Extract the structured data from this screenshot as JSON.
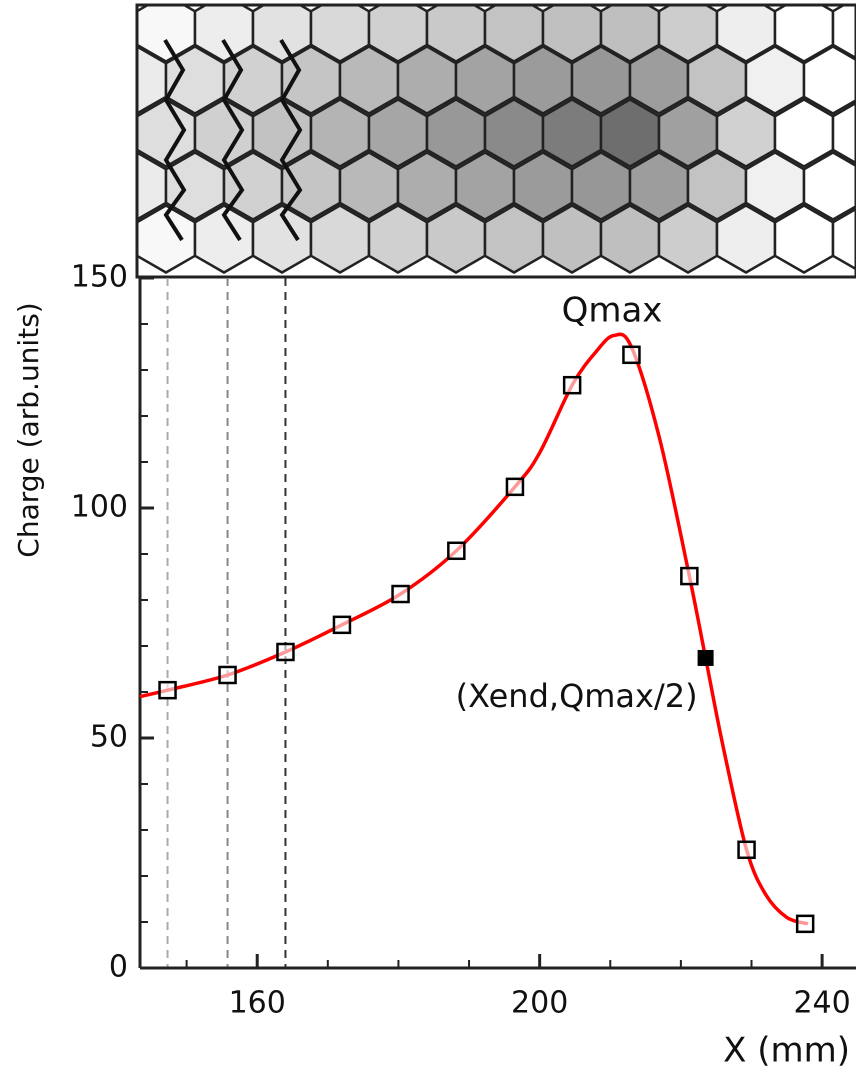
{
  "chart_data": {
    "type": "scatter",
    "ylabel": "Charge (arb.units)",
    "xlabel": "X (mm)",
    "xlim": [
      143.4,
      244.8
    ],
    "ylim": [
      0,
      150
    ],
    "xticks": [
      160,
      200,
      240
    ],
    "yticks": [
      0,
      50,
      100,
      150
    ],
    "xticks_minor": [
      150,
      170,
      180,
      190,
      210,
      220,
      230
    ],
    "yticks_minor": [
      10,
      20,
      30,
      40,
      60,
      70,
      80,
      90,
      110,
      120,
      130,
      140
    ],
    "annotations": [
      {
        "text": "Qmax",
        "x": 210.5,
        "y": 137.5
      }
    ],
    "series": [
      {
        "marker": "square-open",
        "color": "#000000",
        "x": [
          147.3,
          155.8,
          164.0,
          172.0,
          180.3,
          188.2,
          196.5,
          204.6,
          213.0,
          221.2,
          229.3,
          237.6
        ],
        "values": [
          60.4,
          63.7,
          68.7,
          74.6,
          81.3,
          90.7,
          104.6,
          126.7,
          133.3,
          85.2,
          25.7,
          9.6
        ]
      },
      {
        "marker": "square-filled",
        "color": "#000000",
        "label": "(Xend,Qmax/2)",
        "x": [
          223.5
        ],
        "values": [
          67.4
        ]
      },
      {
        "marker": "line",
        "color": "#ff0000",
        "x": [
          143.4,
          147.3,
          155.8,
          164.0,
          172.0,
          180.3,
          188.2,
          196.5,
          200.0,
          204.6,
          208.0,
          210.5,
          213.0,
          217.0,
          221.2,
          223.5,
          226.0,
          229.3,
          232.0,
          235.0,
          238.0
        ],
        "values": [
          59.0,
          60.4,
          63.7,
          68.7,
          74.6,
          81.3,
          90.7,
          104.6,
          112.0,
          126.7,
          134.0,
          137.5,
          135.0,
          115.0,
          85.2,
          67.4,
          48.0,
          25.7,
          16.0,
          11.0,
          9.6
        ]
      }
    ]
  }
}
